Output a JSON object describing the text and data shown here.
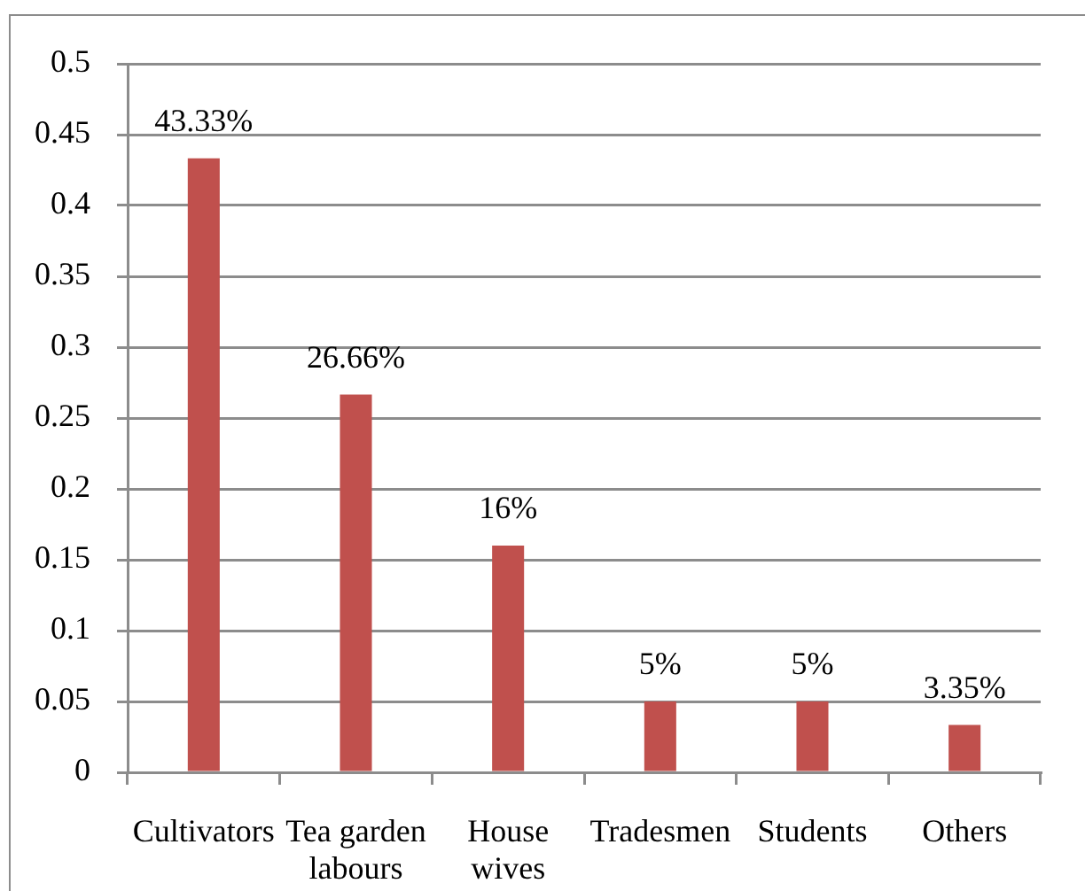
{
  "chart_data": {
    "type": "bar",
    "categories": [
      "Cultivators",
      "Tea garden labours",
      "House wives",
      "Tradesmen",
      "Students",
      "Others"
    ],
    "values": [
      0.4333,
      0.2666,
      0.16,
      0.05,
      0.05,
      0.0335
    ],
    "value_labels": [
      "43.33%",
      "26.66%",
      "16%",
      "5%",
      "5%",
      "3.35%"
    ],
    "color": "#c0504d",
    "ylim": [
      0,
      0.5
    ],
    "yticks": [
      0,
      0.05,
      0.1,
      0.15,
      0.2,
      0.25,
      0.3,
      0.35,
      0.4,
      0.45,
      0.5
    ],
    "grid": "y"
  }
}
